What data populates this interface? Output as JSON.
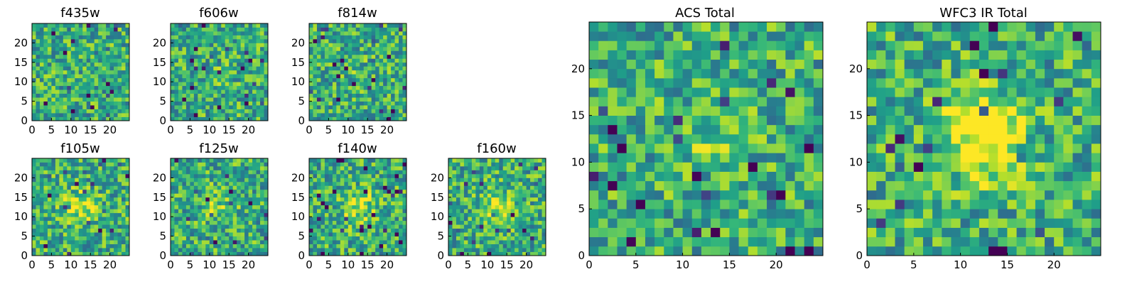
{
  "chart_data": {
    "type": "heatmap",
    "colormap": "viridis",
    "grid_size": 25,
    "panels": [
      {
        "title": "f435w",
        "xticks": [
          0,
          5,
          10,
          15,
          20
        ],
        "yticks": [
          0,
          5,
          10,
          15,
          20
        ],
        "xlim": [
          0,
          25
        ],
        "ylim": [
          0,
          25
        ],
        "source_strength": 0.0,
        "seed": 11
      },
      {
        "title": "f606w",
        "xticks": [
          0,
          5,
          10,
          15,
          20
        ],
        "yticks": [
          0,
          5,
          10,
          15,
          20
        ],
        "xlim": [
          0,
          25
        ],
        "ylim": [
          0,
          25
        ],
        "source_strength": 0.05,
        "seed": 23
      },
      {
        "title": "f814w",
        "xticks": [
          0,
          5,
          10,
          15,
          20
        ],
        "yticks": [
          0,
          5,
          10,
          15,
          20
        ],
        "xlim": [
          0,
          25
        ],
        "ylim": [
          0,
          25
        ],
        "source_strength": 0.05,
        "seed": 37
      },
      {
        "title": "f105w",
        "xticks": [
          0,
          5,
          10,
          15,
          20
        ],
        "yticks": [
          0,
          5,
          10,
          15,
          20
        ],
        "xlim": [
          0,
          25
        ],
        "ylim": [
          0,
          25
        ],
        "source_strength": 0.3,
        "seed": 41
      },
      {
        "title": "f125w",
        "xticks": [
          0,
          5,
          10,
          15,
          20
        ],
        "yticks": [
          0,
          5,
          10,
          15,
          20
        ],
        "xlim": [
          0,
          25
        ],
        "ylim": [
          0,
          25
        ],
        "source_strength": 0.15,
        "seed": 53
      },
      {
        "title": "f140w",
        "xticks": [
          0,
          5,
          10,
          15,
          20
        ],
        "yticks": [
          0,
          5,
          10,
          15,
          20
        ],
        "xlim": [
          0,
          25
        ],
        "ylim": [
          0,
          25
        ],
        "source_strength": 0.3,
        "seed": 67
      },
      {
        "title": "f160w",
        "xticks": [
          0,
          5,
          10,
          15,
          20
        ],
        "yticks": [
          0,
          5,
          10,
          15,
          20
        ],
        "xlim": [
          0,
          25
        ],
        "ylim": [
          0,
          25
        ],
        "source_strength": 0.3,
        "seed": 79
      },
      {
        "title": "ACS Total",
        "xticks": [
          0,
          5,
          10,
          15,
          20
        ],
        "yticks": [
          0,
          5,
          10,
          15,
          20
        ],
        "xlim": [
          0,
          25
        ],
        "ylim": [
          0,
          25
        ],
        "source_strength": 0.1,
        "seed": 83
      },
      {
        "title": "WFC3 IR Total",
        "xticks": [
          0,
          5,
          10,
          15,
          20
        ],
        "yticks": [
          0,
          5,
          10,
          15,
          20
        ],
        "xlim": [
          0,
          25
        ],
        "ylim": [
          0,
          25
        ],
        "source_strength": 0.55,
        "seed": 97
      }
    ]
  }
}
